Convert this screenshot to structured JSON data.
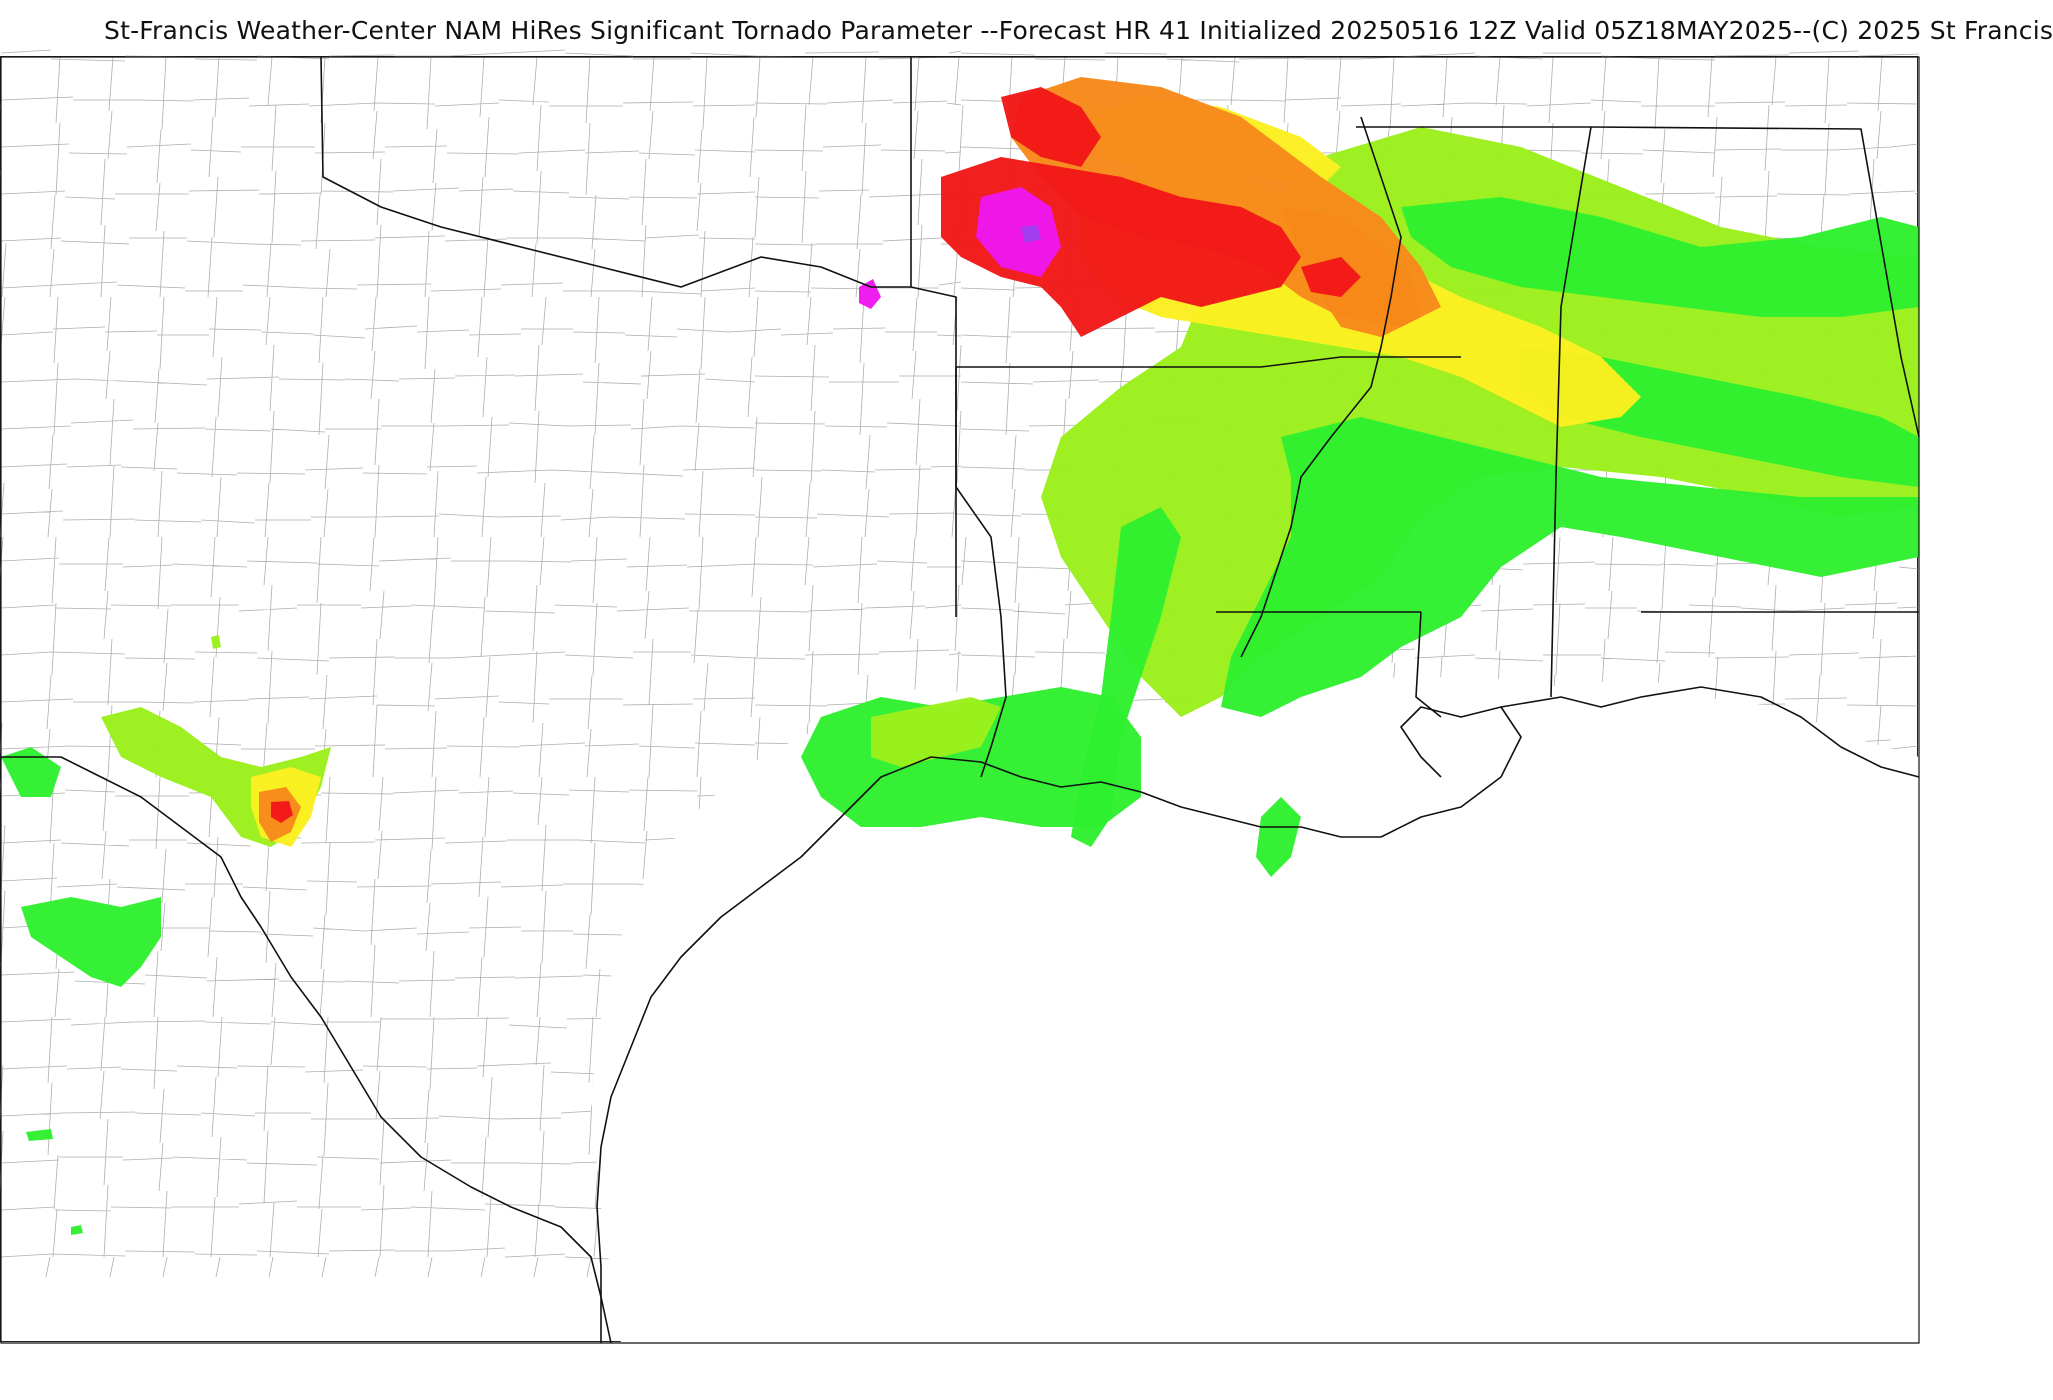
{
  "header": {
    "title": "St-Francis Weather-Center NAM HiRes Significant Tornado Parameter --Forecast HR 41 Initialized 20250516 12Z Valid 05Z18MAY2025--(C) 2025 St Francis"
  },
  "map": {
    "field": "Significant Tornado Parameter",
    "colors": {
      "light_green": "#9cf01c",
      "green": "#2ef02e",
      "yellow": "#fbf020",
      "orange": "#f7891a",
      "red": "#f21818",
      "magenta": "#ee16ee",
      "purple": "#a040f0",
      "state_border": "#111111",
      "county_border": "#9a9a9a"
    }
  }
}
